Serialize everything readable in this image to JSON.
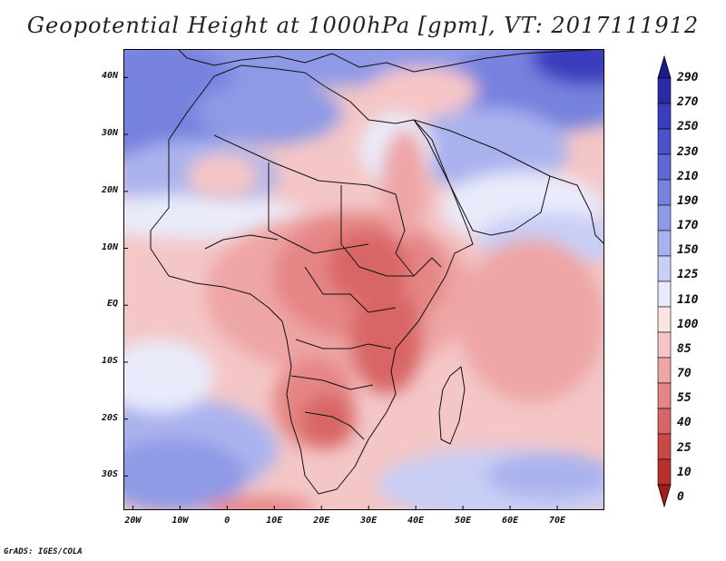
{
  "title": "Geopotential Height at 1000hPa [gpm], VT: 2017111912",
  "footer": "GrADS: IGES/COLA",
  "map": {
    "region": "Africa, Arabian Peninsula and western Indian Ocean",
    "lon_range": [
      -22,
      80
    ],
    "lat_range": [
      -36,
      45
    ],
    "lat_ticks": [
      {
        "lat": 40,
        "label": "40N"
      },
      {
        "lat": 30,
        "label": "30N"
      },
      {
        "lat": 20,
        "label": "20N"
      },
      {
        "lat": 10,
        "label": "10N"
      },
      {
        "lat": 0,
        "label": "EQ"
      },
      {
        "lat": -10,
        "label": "10S"
      },
      {
        "lat": -20,
        "label": "20S"
      },
      {
        "lat": -30,
        "label": "30S"
      }
    ],
    "lon_ticks": [
      {
        "lon": -20,
        "label": "20W"
      },
      {
        "lon": -10,
        "label": "10W"
      },
      {
        "lon": 0,
        "label": "0"
      },
      {
        "lon": 10,
        "label": "10E"
      },
      {
        "lon": 20,
        "label": "20E"
      },
      {
        "lon": 30,
        "label": "30E"
      },
      {
        "lon": 40,
        "label": "40E"
      },
      {
        "lon": 50,
        "label": "50E"
      },
      {
        "lon": 60,
        "label": "60E"
      },
      {
        "lon": 70,
        "label": "70E"
      }
    ]
  },
  "colorbar": {
    "levels": [
      "290",
      "270",
      "250",
      "230",
      "210",
      "190",
      "170",
      "150",
      "125",
      "110",
      "100",
      "85",
      "70",
      "55",
      "40",
      "25",
      "10",
      "0"
    ],
    "colors": [
      "#1c1a8c",
      "#2a2aa6",
      "#3a3dbd",
      "#4b52cc",
      "#5f69d6",
      "#7782de",
      "#8f9ae6",
      "#aab2ee",
      "#c9cef5",
      "#e9ebfb",
      "#fbe4e4",
      "#f6c6c6",
      "#eea5a5",
      "#e58585",
      "#d96666",
      "#cc4848",
      "#bb2e2e",
      "#a31c1c"
    ]
  }
}
